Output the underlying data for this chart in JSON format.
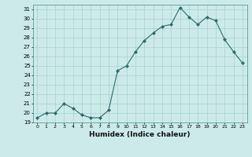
{
  "x": [
    0,
    1,
    2,
    3,
    4,
    5,
    6,
    7,
    8,
    9,
    10,
    11,
    12,
    13,
    14,
    15,
    16,
    17,
    18,
    19,
    20,
    21,
    22,
    23
  ],
  "y": [
    19.5,
    20.0,
    20.0,
    21.0,
    20.5,
    19.8,
    19.5,
    19.5,
    20.3,
    24.5,
    25.0,
    26.5,
    27.7,
    28.5,
    29.2,
    29.4,
    31.2,
    30.2,
    29.4,
    30.2,
    29.8,
    27.8,
    26.5,
    25.3
  ],
  "xlabel": "Humidex (Indice chaleur)",
  "ylim": [
    19,
    31.5
  ],
  "xlim": [
    -0.5,
    23.5
  ],
  "yticks": [
    19,
    20,
    21,
    22,
    23,
    24,
    25,
    26,
    27,
    28,
    29,
    30,
    31
  ],
  "xtick_labels": [
    "0",
    "1",
    "2",
    "3",
    "4",
    "5",
    "6",
    "7",
    "8",
    "9",
    "10",
    "11",
    "12",
    "13",
    "14",
    "15",
    "16",
    "17",
    "18",
    "19",
    "20",
    "21",
    "22",
    "23"
  ],
  "line_color": "#2e6b6b",
  "marker": "D",
  "marker_size": 2,
  "bg_color": "#cdeaea",
  "grid_color": "#a8d0d0",
  "fig_bg": "#cdeaea",
  "spine_color": "#5a9a9a"
}
